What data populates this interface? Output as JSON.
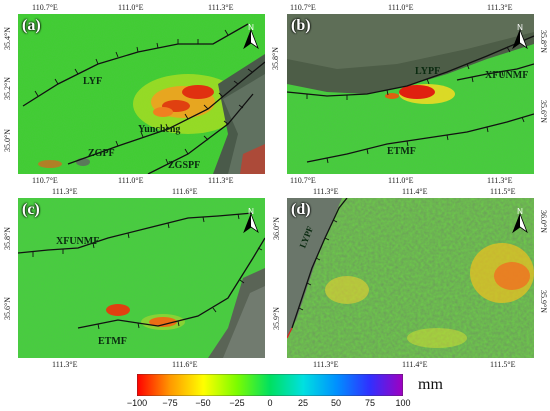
{
  "panels": [
    {
      "label": "(a)",
      "lon_ticks_top": [
        "110.7°E",
        "111.0°E",
        "111.3°E"
      ],
      "lon_ticks_bottom": [
        "110.7°E",
        "111.0°E",
        "111.3°E"
      ],
      "lat_ticks_left": [
        "35.4°N",
        "35.2°N",
        "35.0°N"
      ],
      "faults": [
        "LYF",
        "ZGPF",
        "ZGSPF"
      ],
      "city": "Yuncheng"
    },
    {
      "label": "(b)",
      "lon_ticks_top": [
        "110.7°E",
        "111.0°E",
        "111.3°E"
      ],
      "lon_ticks_bottom": [
        "110.7°E",
        "111.0°E",
        "111.3°E"
      ],
      "lat_ticks_right": [
        "35.8°N",
        "35.6°N"
      ],
      "faults": [
        "LYPF",
        "XFUNMF",
        "ETMF"
      ]
    },
    {
      "label": "(c)",
      "lon_ticks_top": [
        "111.3°E",
        "111.6°E"
      ],
      "lon_ticks_bottom": [
        "111.3°E",
        "111.6°E"
      ],
      "lat_ticks_left": [
        "35.8°N",
        "35.6°N"
      ],
      "faults": [
        "XFUNMF",
        "ETMF"
      ]
    },
    {
      "label": "(d)",
      "lon_ticks_top": [
        "111.3°E",
        "111.4°E",
        "111.5°E"
      ],
      "lon_ticks_bottom": [
        "111.3°E",
        "111.4°E",
        "111.5°E"
      ],
      "lat_ticks_left": [
        "36.0°N",
        "35.9°N"
      ],
      "lat_ticks_right": [
        "36.0°N",
        "35.9°N"
      ],
      "faults": [
        "LYPF"
      ]
    }
  ],
  "colorbar": {
    "ticks": [
      "−100",
      "−75",
      "−50",
      "−25",
      "0",
      "25",
      "50",
      "75",
      "100"
    ],
    "unit": "mm",
    "colors": [
      "#ff0000",
      "#ff9900",
      "#ffff00",
      "#7cfc00",
      "#00e060",
      "#00e0e0",
      "#0090ff",
      "#3030ff",
      "#a000c0"
    ]
  },
  "north_arrow_icon": "north-arrow-icon"
}
